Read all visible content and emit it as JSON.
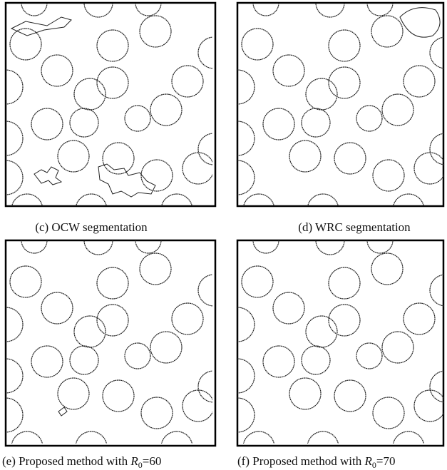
{
  "panels": [
    {
      "caption": "(c) OCW segmentation"
    },
    {
      "caption": "(d) WRC segmentation"
    },
    {
      "caption": {
        "prefix": "(e) Proposed method with ",
        "var": "R",
        "sub": "0",
        "suffix": "=60"
      }
    },
    {
      "caption": {
        "prefix": "(f) Proposed method with ",
        "var": "R",
        "sub": "0",
        "suffix": "=70"
      }
    }
  ]
}
